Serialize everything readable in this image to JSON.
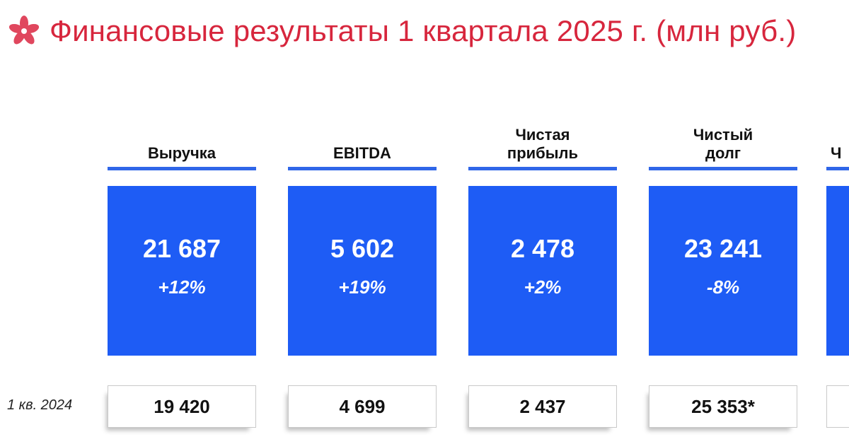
{
  "header": {
    "title": "Финансовые результаты 1 квартала 2025 г. (млн руб.)",
    "logo_icon": "flower-logo-icon",
    "title_color": "#d7263d"
  },
  "row_label": "1 кв. 2024",
  "colors": {
    "card": "#1e5cf5",
    "rule": "#2f66e8"
  },
  "metrics": [
    {
      "label": "Выручка",
      "value": "21 687",
      "change": "+12%",
      "prev": "19 420"
    },
    {
      "label": "EBITDA",
      "value": "5 602",
      "change": "+19%",
      "prev": "4 699"
    },
    {
      "label": "Чистая\nприбыль",
      "value": "2 478",
      "change": "+2%",
      "prev": "2 437"
    },
    {
      "label": "Чистый\nдолг",
      "value": "23 241",
      "change": "-8%",
      "prev": "25 353*"
    },
    {
      "label": "Ч",
      "value": "",
      "change": "",
      "prev": ""
    }
  ]
}
